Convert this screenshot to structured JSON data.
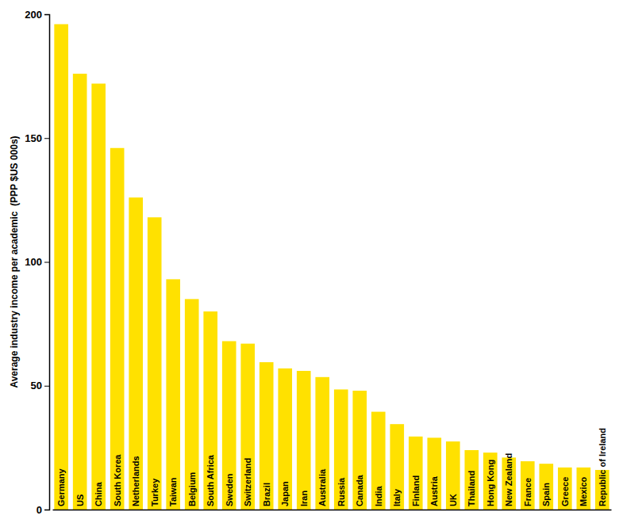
{
  "chart_data": {
    "type": "bar",
    "y_label": "Average industry income per academic  (PPP $US 000s)",
    "categories": [
      "Germany",
      "US",
      "China",
      "South Korea",
      "Netherlands",
      "Turkey",
      "Taiwan",
      "Belgium",
      "South Africa",
      "Sweden",
      "Switzerland",
      "Brazil",
      "Japan",
      "Iran",
      "Australia",
      "Russia",
      "Canada",
      "India",
      "Italy",
      "Finland",
      "Austria",
      "UK",
      "Thailand",
      "Hong Kong",
      "New Zealand",
      "France",
      "Spain",
      "Greece",
      "Mexico",
      "Republic of Ireland"
    ],
    "values": [
      196,
      176,
      172,
      146,
      126,
      118,
      93,
      85,
      80,
      68,
      67,
      59.5,
      57,
      56,
      53.5,
      48.5,
      48,
      39.5,
      34.5,
      29.5,
      29,
      27.5,
      24,
      23,
      21,
      19.5,
      18.5,
      17,
      17,
      16
    ],
    "color": "#ffe100",
    "ylim": [
      0,
      200
    ],
    "yticks": [
      0,
      50,
      100,
      150,
      200
    ],
    "grid": false
  }
}
